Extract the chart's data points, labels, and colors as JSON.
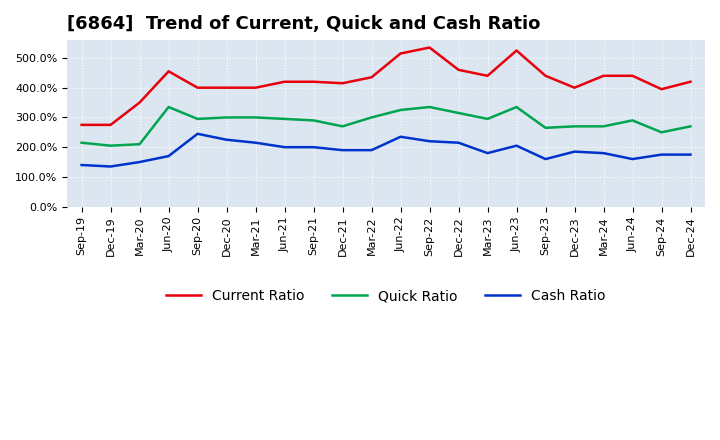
{
  "title": "[6864]  Trend of Current, Quick and Cash Ratio",
  "x_labels": [
    "Sep-19",
    "Dec-19",
    "Mar-20",
    "Jun-20",
    "Sep-20",
    "Dec-20",
    "Mar-21",
    "Jun-21",
    "Sep-21",
    "Dec-21",
    "Mar-22",
    "Jun-22",
    "Sep-22",
    "Dec-22",
    "Mar-23",
    "Jun-23",
    "Sep-23",
    "Dec-23",
    "Mar-24",
    "Jun-24",
    "Sep-24",
    "Dec-24"
  ],
  "current_ratio": [
    275,
    275,
    350,
    455,
    400,
    400,
    400,
    420,
    420,
    415,
    435,
    515,
    535,
    460,
    440,
    525,
    440,
    400,
    440,
    440,
    395,
    420
  ],
  "quick_ratio": [
    215,
    205,
    210,
    335,
    295,
    300,
    300,
    295,
    290,
    270,
    300,
    325,
    335,
    315,
    295,
    335,
    265,
    270,
    270,
    290,
    250,
    270
  ],
  "cash_ratio": [
    140,
    135,
    150,
    170,
    245,
    225,
    215,
    200,
    200,
    190,
    190,
    235,
    220,
    215,
    180,
    205,
    160,
    185,
    180,
    160,
    175,
    175
  ],
  "current_color": "#e8000d",
  "quick_color": "#00a550",
  "cash_color": "#0033cc",
  "ylim": [
    0,
    560
  ],
  "yticks": [
    0,
    100,
    200,
    300,
    400,
    500
  ],
  "plot_bg": "#dce6f1",
  "grid_color": "#ffffff",
  "line_width": 1.8,
  "title_fontsize": 13,
  "legend_fontsize": 10,
  "tick_fontsize": 8
}
